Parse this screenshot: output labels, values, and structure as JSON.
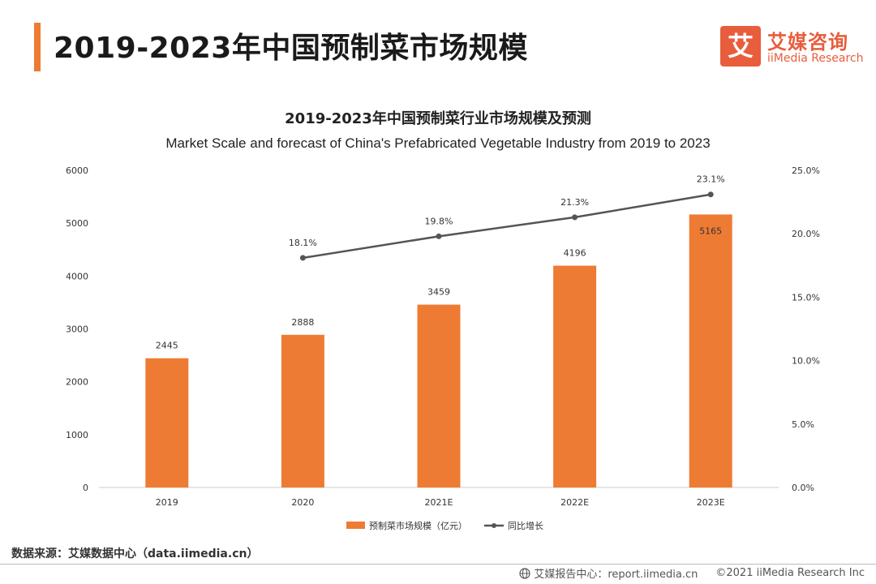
{
  "header": {
    "title": "2019-2023年中国预制菜市场规模",
    "brand_mark": "艾",
    "brand_cn": "艾媒咨询",
    "brand_en": "iiMedia Research",
    "accent_color": "#ee7b33",
    "brand_color": "#e85d3c"
  },
  "chart_data": {
    "type": "bar",
    "title": "2019-2023年中国预制菜行业市场规模及预测",
    "subtitle": "Market Scale and forecast of China's Prefabricated Vegetable Industry from 2019 to 2023",
    "categories": [
      "2019",
      "2020",
      "2021E",
      "2022E",
      "2023E"
    ],
    "series": [
      {
        "name": "预制菜市场规模（亿元）",
        "type": "bar",
        "axis": "left",
        "color": "#ee7b33",
        "values": [
          2445,
          2888,
          3459,
          4196,
          5165
        ],
        "labels": [
          "2445",
          "2888",
          "3459",
          "4196",
          "5165"
        ]
      },
      {
        "name": "同比增长",
        "type": "line",
        "axis": "right",
        "color": "#555555",
        "values": [
          null,
          18.1,
          19.8,
          21.3,
          23.1
        ],
        "labels": [
          "",
          "18.1%",
          "19.8%",
          "21.3%",
          "23.1%"
        ]
      }
    ],
    "y_left": {
      "min": 0,
      "max": 6000,
      "ticks": [
        "0",
        "1000",
        "2000",
        "3000",
        "4000",
        "5000",
        "6000"
      ]
    },
    "y_right": {
      "min": 0,
      "max": 25,
      "ticks": [
        "0.0%",
        "5.0%",
        "10.0%",
        "15.0%",
        "20.0%",
        "25.0%"
      ]
    },
    "grid": false,
    "legend_position": "bottom"
  },
  "footer": {
    "source": "数据来源：艾媒数据中心（data.iimedia.cn）",
    "report_center": "艾媒报告中心：report.iimedia.cn",
    "copyright": "©2021  iiMedia Research  Inc"
  }
}
